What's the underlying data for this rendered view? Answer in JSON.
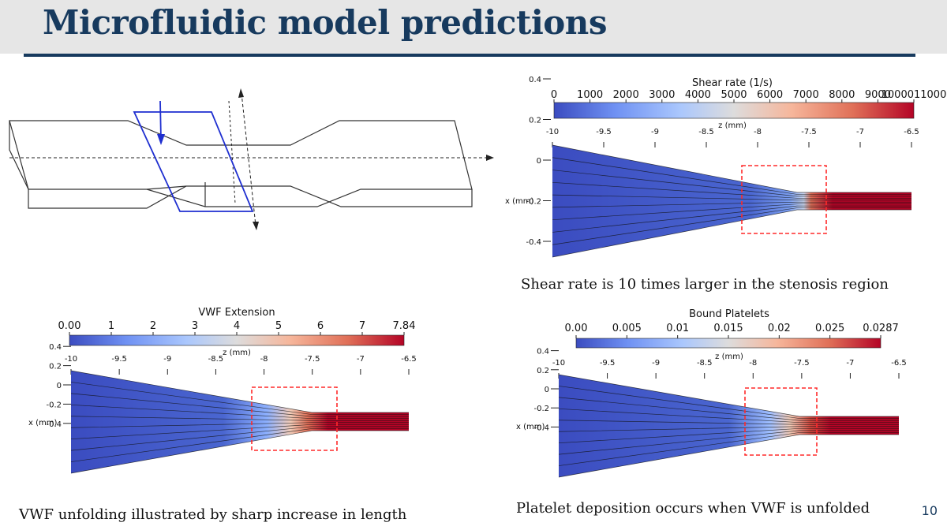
{
  "slide": {
    "title": "Microfluidic model predictions",
    "page_number": "10",
    "accent_color": "#173a5e",
    "header_background": "#e6e6e6"
  },
  "schematic": {
    "description_icons": [
      "channel-outline",
      "slice-plane",
      "flow-arrow",
      "axis-arrow"
    ],
    "plane_color": "#1f2fd0"
  },
  "colormap": [
    "#3b4cc0",
    "#6f91f3",
    "#aac7fd",
    "#dddcdc",
    "#f6b69b",
    "#e07058",
    "#b40426"
  ],
  "stenosis_box_color": "#ff2a2a",
  "panels": [
    {
      "id": "shear",
      "colorbar_title": "Shear rate (1/s)",
      "colorbar_ticks": [
        "0",
        "1000",
        "2000",
        "3000",
        "4000",
        "5000",
        "6000",
        "7000",
        "8000",
        "9000",
        "1000011000"
      ],
      "z_label": "z (mm)",
      "z_ticks": [
        "-10",
        "-9.5",
        "-9",
        "-8.5",
        "-8",
        "-7.5",
        "-7",
        "-6.5"
      ],
      "x_label": "x (mm)",
      "x_ticks": [
        "0.4",
        "0.2",
        "0",
        "-0.2",
        "-0.4"
      ],
      "caption": "Shear rate is 10 times larger in the stenosis region"
    },
    {
      "id": "vwf",
      "colorbar_title": "VWF Extension",
      "colorbar_ticks": [
        "0.00",
        "1",
        "2",
        "3",
        "4",
        "5",
        "6",
        "7",
        "7.84"
      ],
      "z_label": "z (mm)",
      "z_ticks": [
        "-10",
        "-9.5",
        "-9",
        "-8.5",
        "-8",
        "-7.5",
        "-7",
        "-6.5"
      ],
      "x_label": "x (mm)",
      "x_ticks": [
        "0.4",
        "0.2",
        "0",
        "-0.2",
        "-0.4"
      ],
      "caption": "VWF unfolding illustrated by sharp increase in length"
    },
    {
      "id": "platelet",
      "colorbar_title": "Bound Platelets",
      "colorbar_ticks": [
        "0.00",
        "0.005",
        "0.01",
        "0.015",
        "0.02",
        "0.025",
        "0.0287"
      ],
      "z_label": "z (mm)",
      "z_ticks": [
        "-10",
        "-9.5",
        "-9",
        "-8.5",
        "-8",
        "-7.5",
        "-7",
        "-6.5"
      ],
      "x_label": "x (mm)",
      "x_ticks": [
        "0.4",
        "0.2",
        "0",
        "-0.2",
        "-0.4"
      ],
      "caption": "Platelet deposition occurs when VWF is unfolded"
    }
  ]
}
